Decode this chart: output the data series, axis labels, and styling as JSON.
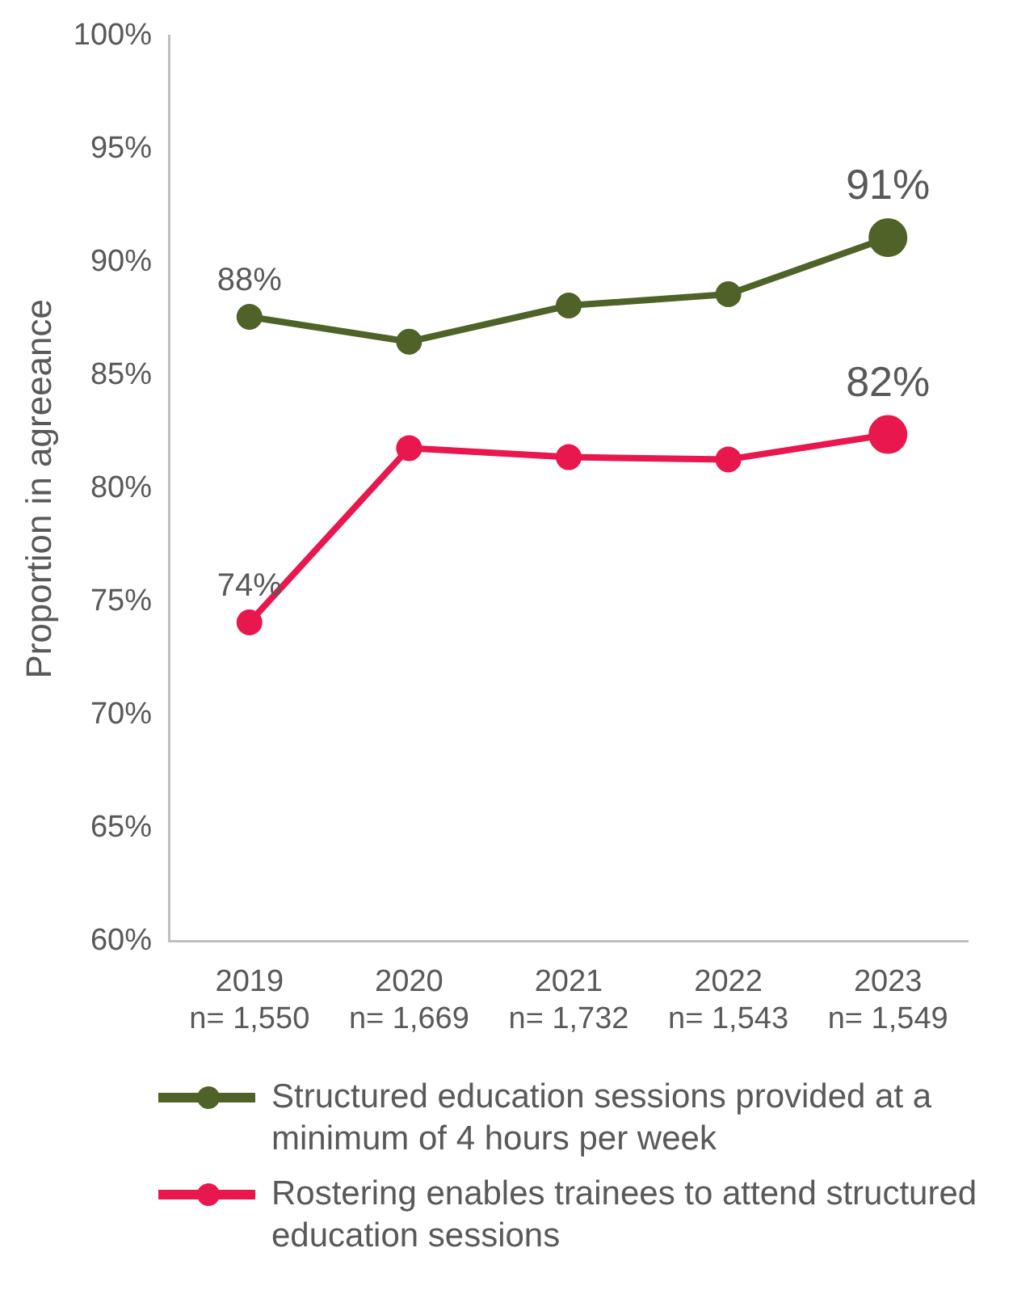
{
  "chart_data": {
    "type": "line",
    "ylabel": "Proportion in agreeance",
    "categories": [
      "2019\nn= 1,550",
      "2020\nn= 1,669",
      "2021\nn= 1,732",
      "2022\nn= 1,543",
      "2023\nn= 1,549"
    ],
    "series": [
      {
        "name": "Structured education sessions provided at a minimum of 4 hours per week",
        "color": "#4f6228",
        "values": [
          87.6,
          86.5,
          88.1,
          88.6,
          91.1
        ],
        "value_labels": [
          "88%",
          null,
          null,
          null,
          "91%"
        ]
      },
      {
        "name": "Rostering enables trainees to attend structured education sessions",
        "color": "#e8174d",
        "values": [
          74.1,
          81.8,
          81.4,
          81.3,
          82.4
        ],
        "value_labels": [
          "74%",
          null,
          null,
          null,
          "82%"
        ]
      }
    ],
    "ylim": [
      60,
      100
    ],
    "yticks": [
      {
        "value": 60,
        "label": "60%"
      },
      {
        "value": 65,
        "label": "65%"
      },
      {
        "value": 70,
        "label": "70%"
      },
      {
        "value": 75,
        "label": "75%"
      },
      {
        "value": 80,
        "label": "80%"
      },
      {
        "value": 85,
        "label": "85%"
      },
      {
        "value": 90,
        "label": "90%"
      },
      {
        "value": 95,
        "label": "95%"
      },
      {
        "value": 100,
        "label": "100%"
      }
    ],
    "grid": false,
    "legend": "bottom",
    "marker": "circle",
    "line_style": "solid"
  }
}
